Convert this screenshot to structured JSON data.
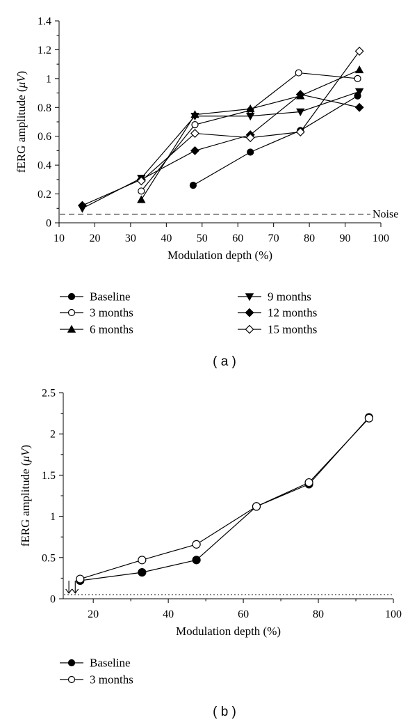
{
  "chart_data": [
    {
      "panel": "( a )",
      "type": "line",
      "xlabel": "Modulation depth (%)",
      "ylabel": "fERG amplitude (",
      "ylabel_unit": "μV",
      "ylabel_end": ")",
      "xlim": [
        10,
        100
      ],
      "ylim": [
        0,
        1.4
      ],
      "xticks": [
        10,
        20,
        30,
        40,
        50,
        60,
        70,
        80,
        90,
        100
      ],
      "yticks": [
        0,
        0.2,
        0.4,
        0.6,
        0.8,
        1,
        1.2,
        1.4
      ],
      "ytick_labels": [
        "0",
        "0.2",
        "0.4",
        "0.6",
        "0.8",
        "1",
        "1.2",
        "1.4"
      ],
      "noise": {
        "value": 0.06,
        "label": "Noise"
      },
      "legend_position": "below",
      "series": [
        {
          "name": "Baseline",
          "marker": "circle-filled",
          "x": [
            47.5,
            63.5,
            77.5,
            93.5
          ],
          "y": [
            0.26,
            0.49,
            0.64,
            0.88
          ]
        },
        {
          "name": "3 months",
          "marker": "circle-open",
          "x": [
            33,
            48,
            63.5,
            77,
            93.5
          ],
          "y": [
            0.22,
            0.68,
            0.78,
            1.04,
            1.0
          ]
        },
        {
          "name": "6 months",
          "marker": "triangle-up",
          "x": [
            33,
            48,
            63.5,
            77.5,
            94
          ],
          "y": [
            0.16,
            0.75,
            0.79,
            0.88,
            1.06
          ]
        },
        {
          "name": "9 months",
          "marker": "triangle-down",
          "x": [
            16.5,
            33,
            48,
            63.5,
            77.5,
            94
          ],
          "y": [
            0.1,
            0.31,
            0.74,
            0.74,
            0.77,
            0.91
          ]
        },
        {
          "name": "12 months",
          "marker": "diamond-filled",
          "x": [
            16.5,
            33,
            48,
            63.5,
            77.5,
            94
          ],
          "y": [
            0.12,
            0.3,
            0.5,
            0.61,
            0.89,
            0.8
          ]
        },
        {
          "name": "15 months",
          "marker": "diamond-open",
          "x": [
            33,
            48,
            63.5,
            77.5,
            94
          ],
          "y": [
            0.29,
            0.62,
            0.59,
            0.63,
            1.19
          ]
        }
      ]
    },
    {
      "panel": "( b )",
      "type": "line",
      "xlabel": "Modulation depth (%)",
      "ylabel": "fERG amplitude (",
      "ylabel_unit": "μV",
      "ylabel_end": ")",
      "xlim": [
        12,
        100
      ],
      "ylim": [
        0,
        2.5
      ],
      "xticks": [
        20,
        40,
        60,
        80,
        100
      ],
      "yticks": [
        0,
        0.5,
        1,
        1.5,
        2,
        2.5
      ],
      "ytick_labels": [
        "0",
        "0.5",
        "1",
        "1.5",
        "2",
        "2.5"
      ],
      "noise": {
        "value": 0.05
      },
      "arrows_x": [
        13.5,
        15.2
      ],
      "legend_position": "below",
      "series": [
        {
          "name": "Baseline",
          "marker": "circle-filled",
          "x": [
            16.5,
            33,
            47.5,
            63.5,
            77.5,
            93.5
          ],
          "y": [
            0.22,
            0.32,
            0.47,
            1.12,
            1.39,
            2.2
          ]
        },
        {
          "name": "3 months",
          "marker": "circle-open",
          "x": [
            16.5,
            33,
            47.5,
            63.5,
            77.5,
            93.5
          ],
          "y": [
            0.24,
            0.47,
            0.66,
            1.12,
            1.41,
            2.19
          ]
        }
      ]
    }
  ]
}
